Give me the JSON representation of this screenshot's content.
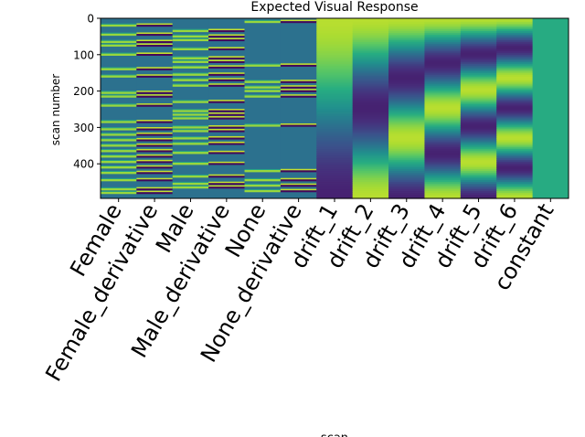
{
  "chart_data": {
    "type": "heatmap",
    "title": "Expected Visual Response",
    "xlabel": "scan",
    "ylabel": "scan number",
    "ylim": [
      495,
      0
    ],
    "n_scans": 495,
    "yticks": [
      0,
      100,
      200,
      300,
      400
    ],
    "colormap": "viridis",
    "grid": false,
    "columns": [
      {
        "label": "Female",
        "kind": "event",
        "events": [
          20,
          45,
          65,
          75,
          100,
          140,
          160,
          205,
          215,
          240,
          285,
          305,
          320,
          335,
          350,
          365,
          380,
          395,
          410,
          425,
          445,
          470,
          480
        ]
      },
      {
        "label": "Female_derivative",
        "kind": "event_derivative",
        "events": [
          20,
          45,
          65,
          75,
          100,
          140,
          160,
          205,
          215,
          240,
          285,
          305,
          320,
          335,
          350,
          365,
          380,
          395,
          410,
          425,
          445,
          470,
          480
        ]
      },
      {
        "label": "Male",
        "kind": "event",
        "events": [
          35,
          50,
          60,
          85,
          110,
          120,
          135,
          155,
          170,
          185,
          230,
          255,
          265,
          275,
          300,
          310,
          330,
          345,
          370,
          400,
          435,
          455,
          465
        ]
      },
      {
        "label": "Male_derivative",
        "kind": "event_derivative",
        "events": [
          35,
          50,
          60,
          85,
          110,
          120,
          135,
          155,
          170,
          185,
          230,
          255,
          265,
          275,
          300,
          310,
          330,
          345,
          370,
          400,
          435,
          455,
          465
        ]
      },
      {
        "label": "None",
        "kind": "event",
        "events": [
          10,
          130,
          175,
          190,
          200,
          215,
          295,
          420,
          445,
          460,
          475
        ]
      },
      {
        "label": "None_derivative",
        "kind": "event_derivative",
        "events": [
          10,
          130,
          175,
          190,
          200,
          215,
          295,
          420,
          445,
          460,
          475
        ]
      },
      {
        "label": "drift_1",
        "kind": "drift",
        "order": 1
      },
      {
        "label": "drift_2",
        "kind": "drift",
        "order": 2
      },
      {
        "label": "drift_3",
        "kind": "drift",
        "order": 3
      },
      {
        "label": "drift_4",
        "kind": "drift",
        "order": 4
      },
      {
        "label": "drift_5",
        "kind": "drift",
        "order": 5
      },
      {
        "label": "drift_6",
        "kind": "drift",
        "order": 6
      },
      {
        "label": "constant",
        "kind": "constant"
      }
    ]
  }
}
